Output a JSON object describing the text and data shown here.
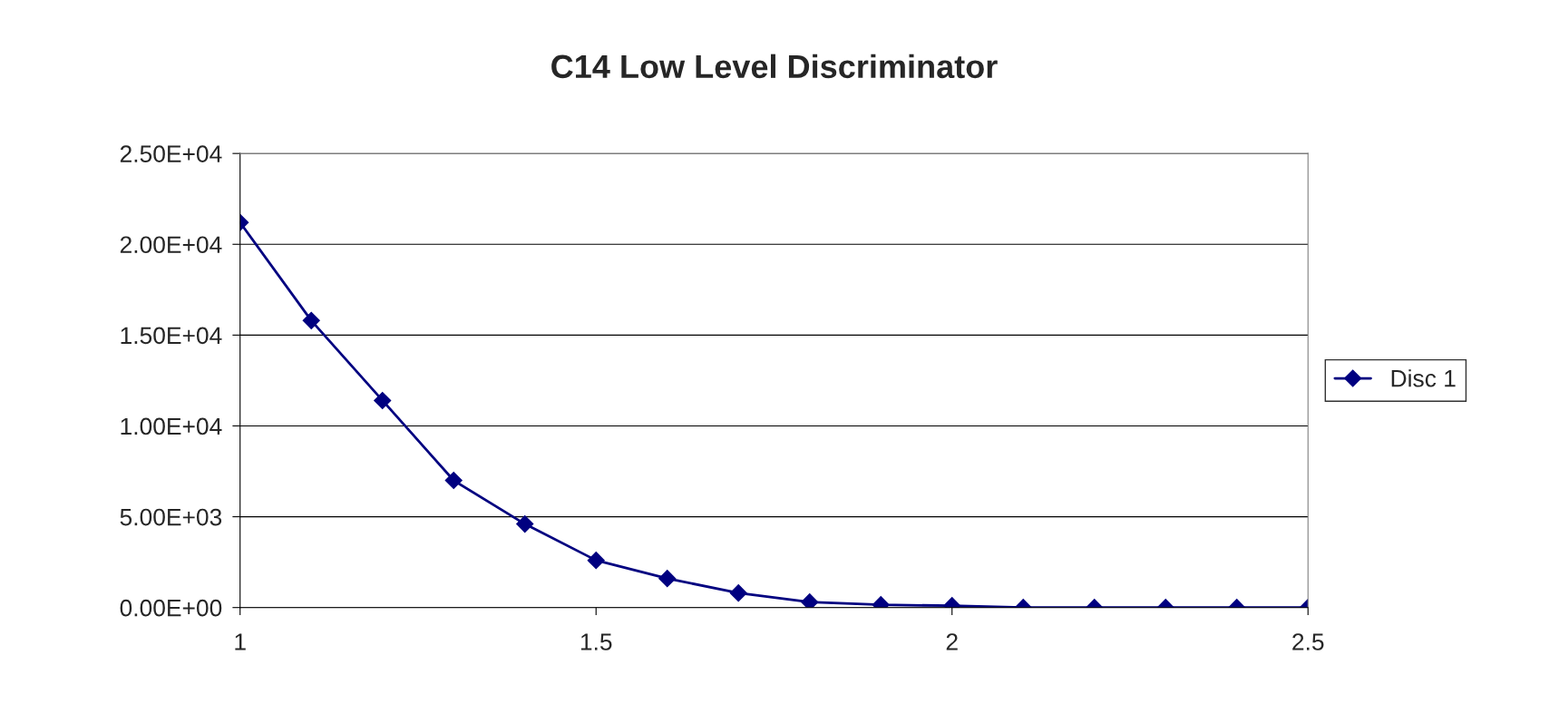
{
  "chart_data": {
    "type": "line",
    "title": "C14 Low Level Discriminator",
    "x": [
      1,
      1.1,
      1.2,
      1.3,
      1.4,
      1.5,
      1.6,
      1.7,
      1.8,
      1.9,
      2.0,
      2.1,
      2.2,
      2.3,
      2.4,
      2.5
    ],
    "series": [
      {
        "name": "Disc 1",
        "color": "#000080",
        "values": [
          21200,
          15800,
          11400,
          7000,
          4600,
          2600,
          1600,
          800,
          300,
          150,
          100,
          0,
          0,
          0,
          0,
          0
        ]
      }
    ],
    "xlim": [
      1,
      2.5
    ],
    "xticks": [
      1,
      1.5,
      2,
      2.5
    ],
    "ylim": [
      0,
      25000
    ],
    "yticks": [
      {
        "value": 0,
        "label": "0.00E+00"
      },
      {
        "value": 5000,
        "label": "5.00E+03"
      },
      {
        "value": 10000,
        "label": "1.00E+04"
      },
      {
        "value": 15000,
        "label": "1.50E+04"
      },
      {
        "value": 20000,
        "label": "2.00E+04"
      },
      {
        "value": 25000,
        "label": "2.50E+04"
      }
    ],
    "grid": "y",
    "legend": "right",
    "marker": "diamond",
    "line_style": "solid"
  }
}
